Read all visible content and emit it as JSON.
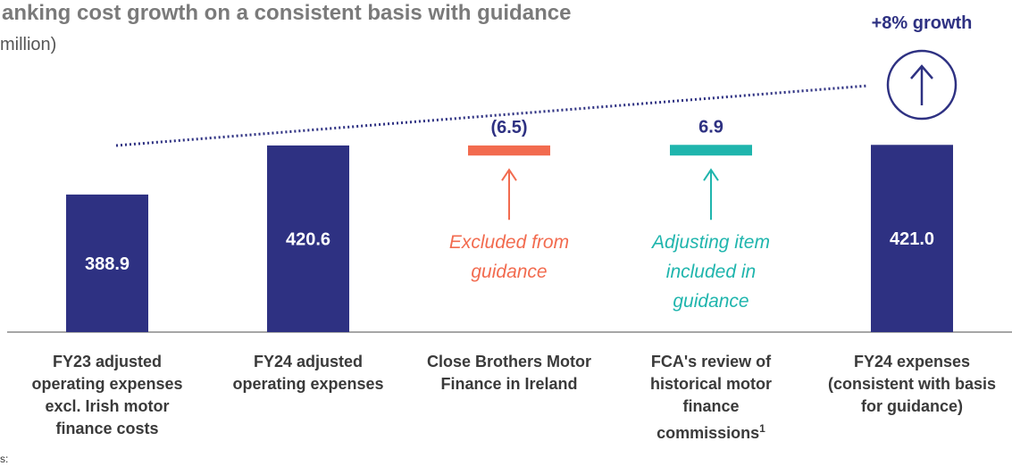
{
  "chart_data": {
    "type": "waterfall",
    "title": "anking cost growth on a consistent basis with guidance",
    "subtitle": "million)",
    "growth_label": "+8% growth",
    "categories": [
      "FY23 adjusted operating expenses excl. Irish motor finance costs",
      "FY24 adjusted operating expenses",
      "Close Brothers Motor Finance in Ireland",
      "FCA's review of historical motor finance commissions",
      "FY24 expenses (consistent with basis for guidance)"
    ],
    "category_footnote": "1",
    "measures": [
      "absolute",
      "absolute",
      "relative",
      "relative",
      "total"
    ],
    "values": [
      388.9,
      420.6,
      -6.5,
      6.9,
      421.0
    ],
    "value_labels": [
      "388.9",
      "420.6",
      "(6.5)",
      "6.9",
      "421.0"
    ],
    "colors": {
      "total": "#2e3182",
      "decrease": "#f26b4f",
      "increase": "#1fb5ad"
    },
    "annotations": [
      {
        "text": "Excluded from guidance",
        "color": "#f26b4f"
      },
      {
        "text": "Adjusting item included in guidance",
        "color": "#1fb5ad"
      }
    ],
    "ylim": [
      300,
      480
    ],
    "footnote": "s:"
  }
}
